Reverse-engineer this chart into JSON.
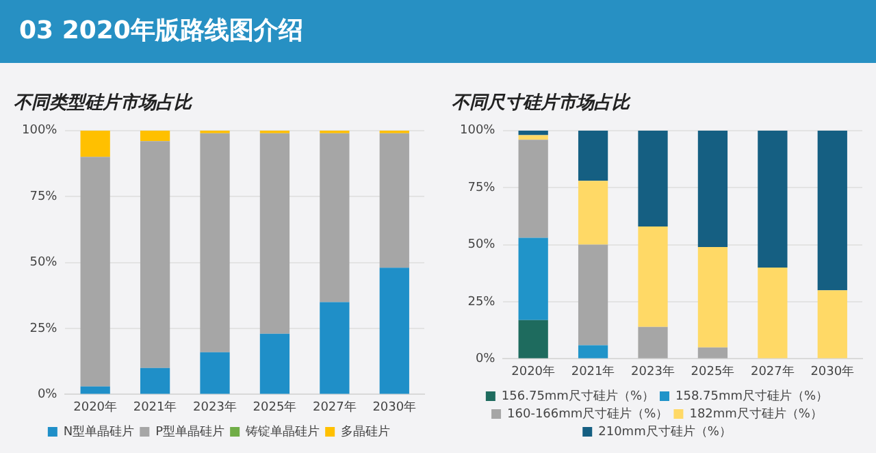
{
  "chart_data": [
    {
      "type": "bar",
      "title": "不同类型硅片市场占比",
      "annotations": [
        "03 2020年版路线图介绍"
      ],
      "stacked": true,
      "categories": [
        "2020年",
        "2021年",
        "2023年",
        "2025年",
        "2027年",
        "2030年"
      ],
      "series": [
        {
          "name": "N型单晶硅片",
          "color": "#1f8fc8",
          "values": [
            3,
            10,
            16,
            23,
            35,
            48
          ]
        },
        {
          "name": "P型单晶硅片",
          "color": "#a6a6a6",
          "values": [
            87,
            86,
            83,
            76,
            64,
            51
          ]
        },
        {
          "name": "铸锭单晶硅片",
          "color": "#70ad47",
          "values": [
            0,
            0,
            0,
            0,
            0,
            0
          ]
        },
        {
          "name": "多晶硅片",
          "color": "#ffc000",
          "values": [
            10,
            4,
            1,
            1,
            1,
            1
          ]
        }
      ],
      "ylim": [
        0,
        100
      ],
      "yticks": [
        {
          "value": 0,
          "label": "0%"
        },
        {
          "value": 25,
          "label": "25%"
        },
        {
          "value": 50,
          "label": "50%"
        },
        {
          "value": 75,
          "label": "75%"
        },
        {
          "value": 100,
          "label": "100%"
        }
      ],
      "grid": "y",
      "legend": "bottom"
    },
    {
      "type": "bar",
      "title": "不同尺寸硅片市场占比",
      "stacked": true,
      "categories": [
        "2020年",
        "2021年",
        "2023年",
        "2025年",
        "2027年",
        "2030年"
      ],
      "series": [
        {
          "name": "156.75mm尺寸硅片（%）",
          "color": "#1e6b5e",
          "values": [
            17,
            0,
            0,
            0,
            0,
            0
          ]
        },
        {
          "name": "158.75mm尺寸硅片（%）",
          "color": "#2094c9",
          "values": [
            36,
            6,
            0,
            0,
            0,
            0
          ]
        },
        {
          "name": "160-166mm尺寸硅片（%）",
          "color": "#a6a6a6",
          "values": [
            43,
            44,
            14,
            5,
            0,
            0
          ]
        },
        {
          "name": "182mm尺寸硅片（%）",
          "color": "#ffd966",
          "values": [
            2,
            28,
            44,
            44,
            40,
            30
          ]
        },
        {
          "name": "210mm尺寸硅片（%）",
          "color": "#155f82",
          "values": [
            2,
            22,
            42,
            51,
            60,
            70
          ]
        }
      ],
      "ylim": [
        0,
        100
      ],
      "yticks": [
        {
          "value": 0,
          "label": "0%"
        },
        {
          "value": 25,
          "label": "25%"
        },
        {
          "value": 50,
          "label": "50%"
        },
        {
          "value": 75,
          "label": "75%"
        },
        {
          "value": 100,
          "label": "100%"
        }
      ],
      "grid": "y",
      "legend": "bottom"
    }
  ]
}
